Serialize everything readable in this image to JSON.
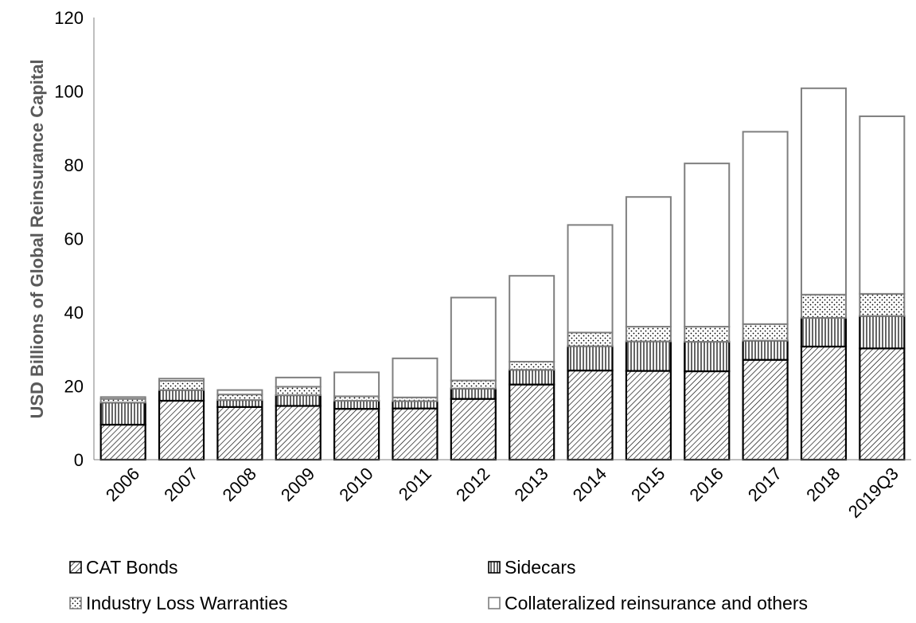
{
  "chart_data": {
    "type": "bar",
    "stacked": true,
    "title": "",
    "xlabel": "",
    "ylabel": "USD Billions of Global Reinsurance Capital",
    "ylim": [
      0,
      120
    ],
    "yticks": [
      0,
      20,
      40,
      60,
      80,
      100,
      120
    ],
    "grid": false,
    "legend_position": "bottom",
    "categories": [
      "2006",
      "2007",
      "2008",
      "2009",
      "2010",
      "2011",
      "2012",
      "2013",
      "2014",
      "2015",
      "2016",
      "2017",
      "2018",
      "2019Q3"
    ],
    "series": [
      {
        "name": "CAT Bonds",
        "pattern": "diagonal-hatch",
        "color": "#000000",
        "values": [
          9.5,
          16,
          14.3,
          14.6,
          13.8,
          13.9,
          16.5,
          20.4,
          24.2,
          24.1,
          24.0,
          27.1,
          30.7,
          30.2
        ]
      },
      {
        "name": "Sidecars",
        "pattern": "vertical-lines",
        "color": "#000000",
        "values": [
          6.0,
          2.9,
          1.9,
          2.9,
          2.2,
          2.0,
          2.8,
          4.0,
          6.6,
          8.0,
          8.0,
          5.2,
          7.8,
          8.8
        ]
      },
      {
        "name": "Industry Loss Warranties",
        "pattern": "dots",
        "color": "#7f7f7f",
        "values": [
          1.0,
          2.5,
          1.5,
          2.3,
          1.2,
          1.0,
          2.2,
          2.2,
          3.7,
          4.0,
          4.1,
          4.5,
          6.3,
          6.0
        ]
      },
      {
        "name": "Collateralized reinsurance and others",
        "pattern": "none",
        "color": "#7f7f7f",
        "values": [
          0.5,
          0.6,
          1.2,
          2.5,
          6.5,
          10.6,
          22.5,
          23.3,
          29.2,
          35.2,
          44.3,
          52.2,
          56.0,
          48.2
        ]
      }
    ]
  }
}
